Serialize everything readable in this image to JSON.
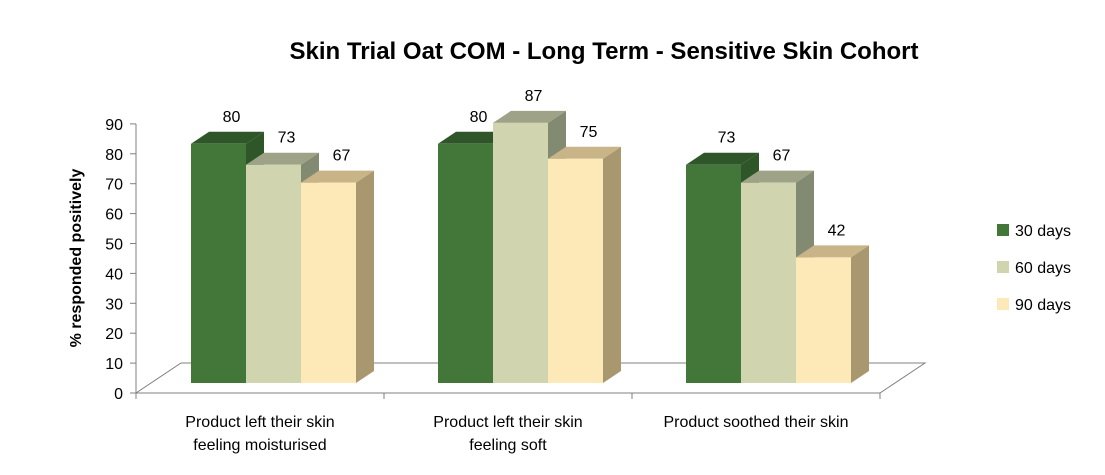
{
  "chart_data": {
    "type": "bar",
    "title": "Skin Trial Oat COM - Long Term - Sensitive Skin Cohort",
    "xlabel": "",
    "ylabel": "% responded positively",
    "ylim": [
      0,
      90
    ],
    "yticks": [
      "0",
      "10",
      "20",
      "30",
      "40",
      "50",
      "60",
      "70",
      "80",
      "90"
    ],
    "categories": [
      [
        "Product left their skin",
        "feeling moisturised"
      ],
      [
        "Product left their skin",
        "feeling soft"
      ],
      [
        "Product soothed their skin"
      ]
    ],
    "series": [
      {
        "name": "30 days",
        "values": [
          80,
          80,
          73
        ],
        "color": "#43773a",
        "top": "#2e5628",
        "side": "#2e5628"
      },
      {
        "name": "60 days",
        "values": [
          73,
          87,
          67
        ],
        "color": "#d0d4af",
        "top": "#9ea287",
        "side": "#838a72"
      },
      {
        "name": "90 days",
        "values": [
          67,
          75,
          42
        ],
        "color": "#fde9b7",
        "top": "#c8b487",
        "side": "#a8976f"
      }
    ],
    "legend": "right",
    "grid": false,
    "style": "3d-clustered-column"
  }
}
